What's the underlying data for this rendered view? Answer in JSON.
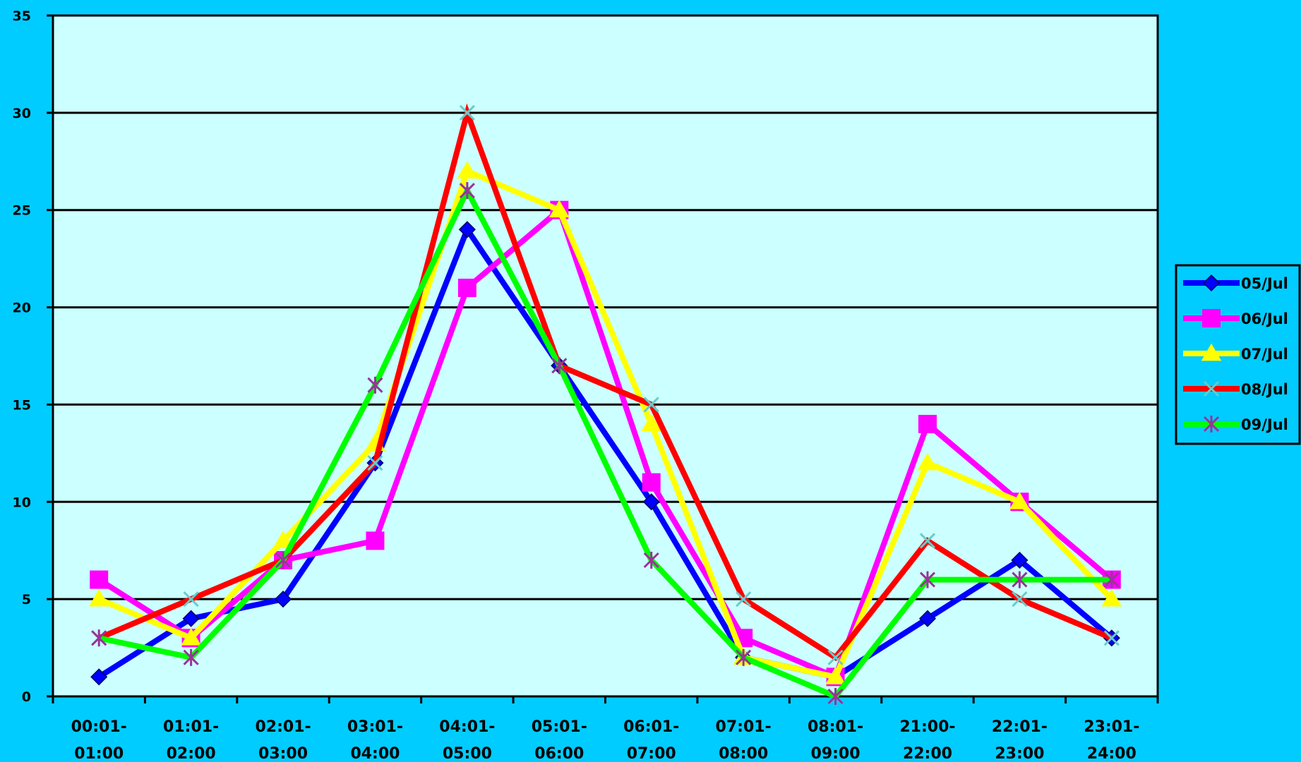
{
  "chart_data": {
    "type": "line",
    "title": "",
    "xlabel": "",
    "ylabel": "",
    "ylim": [
      0,
      35
    ],
    "yticks": [
      0,
      5,
      10,
      15,
      20,
      25,
      30,
      35
    ],
    "grid": true,
    "legend_position": "right",
    "plot_background": "#ccffff",
    "page_background": "#00ccff",
    "categories": [
      {
        "line1": "00:01-",
        "line2": "01:00"
      },
      {
        "line1": "01:01-",
        "line2": "02:00"
      },
      {
        "line1": "02:01-",
        "line2": "03:00"
      },
      {
        "line1": "03:01-",
        "line2": "04:00"
      },
      {
        "line1": "04:01-",
        "line2": "05:00"
      },
      {
        "line1": "05:01-",
        "line2": "06:00"
      },
      {
        "line1": "06:01-",
        "line2": "07:00"
      },
      {
        "line1": "07:01-",
        "line2": "08:00"
      },
      {
        "line1": "08:01-",
        "line2": "09:00"
      },
      {
        "line1": "21:00-",
        "line2": "22:00"
      },
      {
        "line1": "22:01-",
        "line2": "23:00"
      },
      {
        "line1": "23:01-",
        "line2": "24:00"
      }
    ],
    "series": [
      {
        "name": "05/Jul",
        "color": "#0000ff",
        "marker": "diamond",
        "values": [
          1,
          4,
          5,
          12,
          24,
          17,
          10,
          2,
          1,
          4,
          7,
          3
        ]
      },
      {
        "name": "06/Jul",
        "color": "#ff00ff",
        "marker": "square",
        "values": [
          6,
          3,
          7,
          8,
          21,
          25,
          11,
          3,
          1,
          14,
          10,
          6
        ]
      },
      {
        "name": "07/Jul",
        "color": "#ffff00",
        "marker": "triangle",
        "values": [
          5,
          3,
          8,
          13,
          27,
          25,
          14,
          2,
          1,
          12,
          10,
          5
        ]
      },
      {
        "name": "08/Jul",
        "color": "#ff0000",
        "marker": "x",
        "values": [
          3,
          5,
          7,
          12,
          30,
          17,
          15,
          5,
          2,
          8,
          5,
          3
        ]
      },
      {
        "name": "09/Jul",
        "color": "#00ff00",
        "marker": "star",
        "values": [
          3,
          2,
          7,
          16,
          26,
          17,
          7,
          2,
          0,
          6,
          6,
          6
        ]
      }
    ]
  }
}
